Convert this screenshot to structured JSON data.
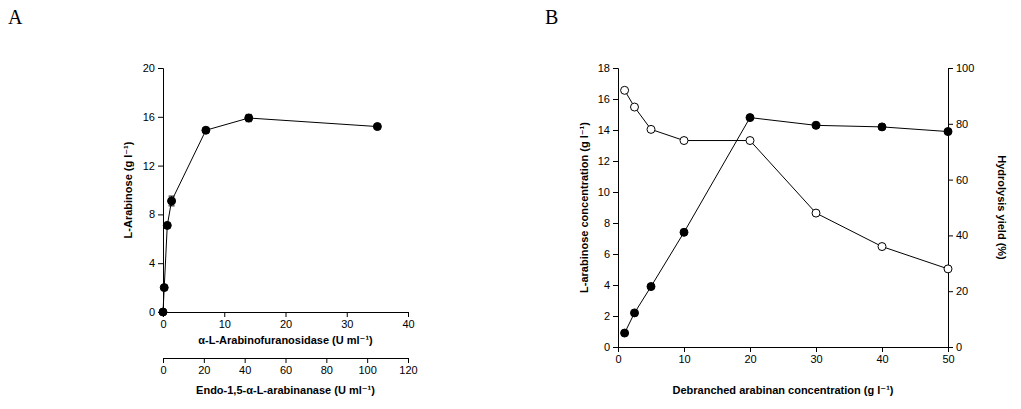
{
  "chart_data": [
    {
      "type": "line",
      "panel_label": "A",
      "x_label": "α-L-Arabinofuranosidase (U ml⁻¹)",
      "x2_label": "Endo-1,5-α-L-arabinanase (U ml⁻¹)",
      "y_label": "L-Arabinose (g l⁻¹)",
      "x": [
        0,
        0.2,
        0.7,
        1.4,
        7,
        14,
        35
      ],
      "values": [
        0,
        2,
        7.1,
        9.1,
        14.9,
        15.9,
        15.2
      ],
      "errors": [
        0,
        0,
        0,
        0.4,
        0.1,
        0.3,
        0
      ],
      "marker": "filled-circle",
      "xlim": [
        0,
        40
      ],
      "xticks": [
        0,
        10,
        20,
        30,
        40
      ],
      "x2lim": [
        0,
        120
      ],
      "x2ticks": [
        0,
        20,
        40,
        60,
        80,
        100,
        120
      ],
      "ylim": [
        0,
        20
      ],
      "yticks": [
        0,
        4,
        8,
        12,
        16,
        20
      ]
    },
    {
      "type": "line",
      "panel_label": "B",
      "x_label": "Debranched arabinan concentration (g l⁻¹)",
      "y_label": "L-arabinose concentration (g l⁻¹)",
      "y2_label": "Hydrolysis yield (%)",
      "x": [
        1,
        2.5,
        5,
        10,
        20,
        30,
        40,
        50
      ],
      "series": [
        {
          "values": [
            0.9,
            2.2,
            3.9,
            7.4,
            14.8,
            14.3,
            14.2,
            13.9
          ],
          "marker": "filled-circle"
        },
        {
          "values": [
            92,
            86,
            78,
            74,
            74,
            48,
            36,
            28
          ],
          "marker": "open-circle",
          "axis": "y2"
        }
      ],
      "xlim": [
        0,
        50
      ],
      "xticks": [
        0,
        10,
        20,
        30,
        40,
        50
      ],
      "ylim": [
        0,
        18
      ],
      "yticks": [
        0,
        2,
        4,
        6,
        8,
        10,
        12,
        14,
        16,
        18
      ],
      "y2lim": [
        0,
        100
      ],
      "y2ticks": [
        0,
        20,
        40,
        60,
        80,
        100
      ]
    }
  ]
}
